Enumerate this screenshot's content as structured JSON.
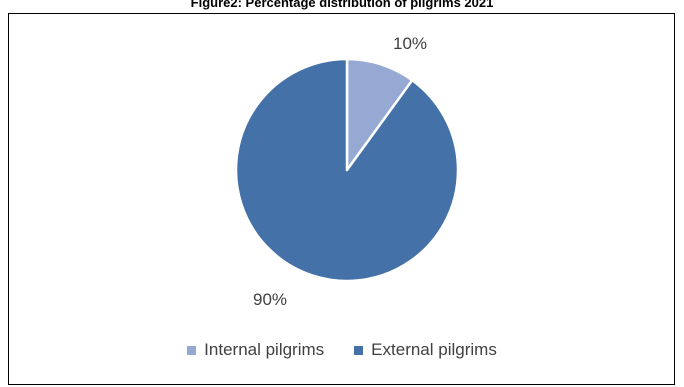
{
  "chart_data": {
    "type": "pie",
    "title": "Figure2: Percentage distribution of pilgrims 2021",
    "slices": [
      {
        "label": "Internal pilgrims",
        "value": 10,
        "display": "10%",
        "color": "#95a9d2"
      },
      {
        "label": "External pilgrims",
        "value": 90,
        "display": "90%",
        "color": "#4472a8"
      }
    ],
    "start_angle_deg": 0,
    "direction": "clockwise",
    "legend_position": "bottom"
  }
}
